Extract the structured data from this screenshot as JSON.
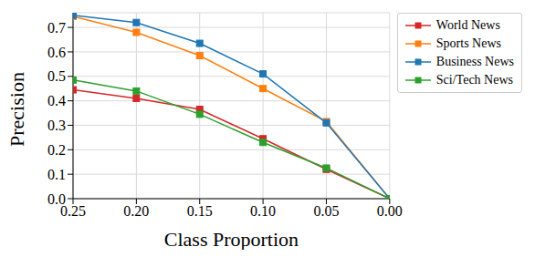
{
  "chart_data": {
    "type": "line",
    "x_label": "Class Proportion",
    "y_label": "Precision",
    "x": [
      0.25,
      0.2,
      0.15,
      0.1,
      0.05,
      0.0
    ],
    "series": [
      {
        "name": "World News",
        "color": "#d62728",
        "marker": "square",
        "values": [
          0.445,
          0.41,
          0.365,
          0.245,
          0.12,
          0.0
        ]
      },
      {
        "name": "Sports News",
        "color": "#ff7f0e",
        "marker": "square",
        "values": [
          0.745,
          0.68,
          0.585,
          0.45,
          0.315,
          0.0
        ]
      },
      {
        "name": "Business News",
        "color": "#1f77b4",
        "marker": "square",
        "values": [
          0.75,
          0.72,
          0.635,
          0.51,
          0.31,
          0.0
        ]
      },
      {
        "name": "Sci/Tech News",
        "color": "#2ca02c",
        "marker": "square",
        "values": [
          0.485,
          0.44,
          0.345,
          0.23,
          0.125,
          0.0
        ]
      }
    ],
    "xlim": [
      0.25,
      0.0
    ],
    "xticks": [
      {
        "value": 0.25,
        "label": "0.25"
      },
      {
        "value": 0.2,
        "label": "0.20"
      },
      {
        "value": 0.15,
        "label": "0.15"
      },
      {
        "value": 0.1,
        "label": "0.10"
      },
      {
        "value": 0.05,
        "label": "0.05"
      },
      {
        "value": 0.0,
        "label": "0.00"
      }
    ],
    "ylim": [
      0.0,
      0.76
    ],
    "yticks": [
      {
        "value": 0.0,
        "label": "0.0"
      },
      0.1,
      0.2,
      0.3,
      0.4,
      0.5,
      0.6,
      0.7
    ],
    "grid": true,
    "legend": "upper right"
  }
}
